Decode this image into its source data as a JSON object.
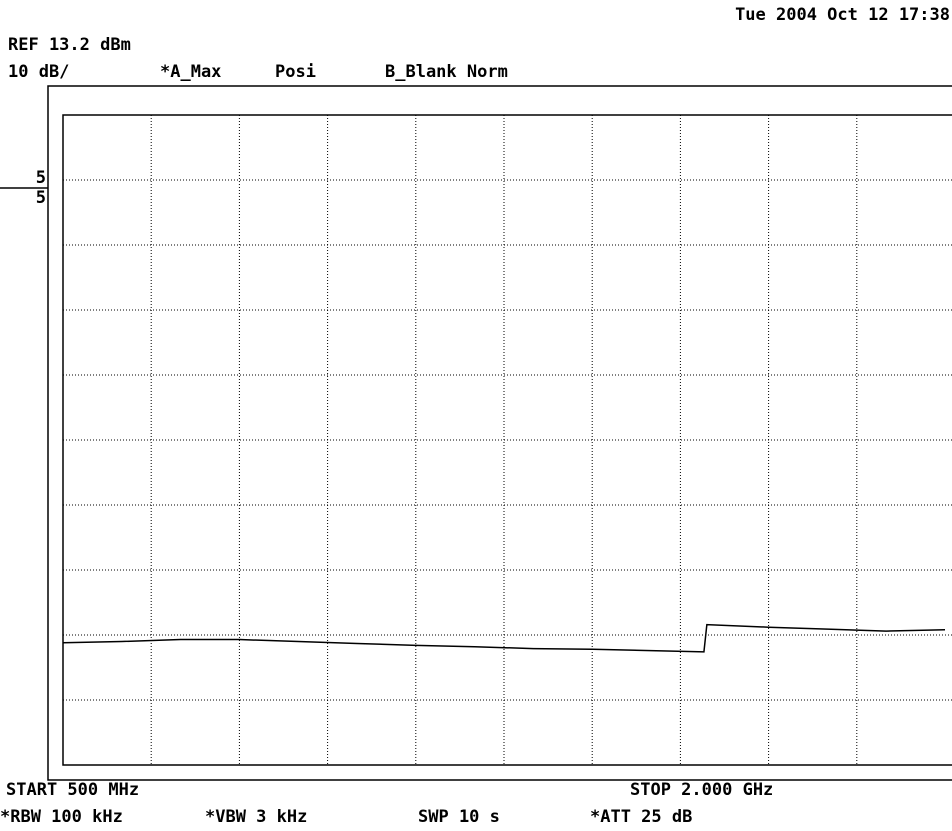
{
  "header": {
    "timestamp": "Tue 2004 Oct 12 17:38",
    "ref": "REF 13.2 dBm",
    "scale": "10 dB/",
    "trace_a": "*A_Max",
    "detector": "Posi",
    "trace_b": "B_Blank Norm",
    "marker_upper": "5",
    "marker_lower": "5"
  },
  "footer": {
    "start": "START 500 MHz",
    "stop": "STOP 2.000 GHz",
    "rbw": "*RBW 100 kHz",
    "vbw": "*VBW 3 kHz",
    "sweep": "SWP 10 s",
    "attenuation": "*ATT 25 dB"
  },
  "chart_data": {
    "type": "line",
    "x": [
      500,
      600,
      700,
      800,
      900,
      1000,
      1100,
      1200,
      1300,
      1400,
      1500,
      1590,
      1595,
      1700,
      1800,
      1900,
      2000
    ],
    "values": [
      -68.0,
      -67.8,
      -67.5,
      -67.5,
      -67.8,
      -68.1,
      -68.4,
      -68.6,
      -68.9,
      -69.0,
      -69.2,
      -69.4,
      -65.2,
      -65.6,
      -65.9,
      -66.2,
      -66.0
    ],
    "color": "#000000",
    "xlim": [
      500,
      2000
    ],
    "ylim": [
      -86.8,
      13.2
    ],
    "grid": true
  }
}
